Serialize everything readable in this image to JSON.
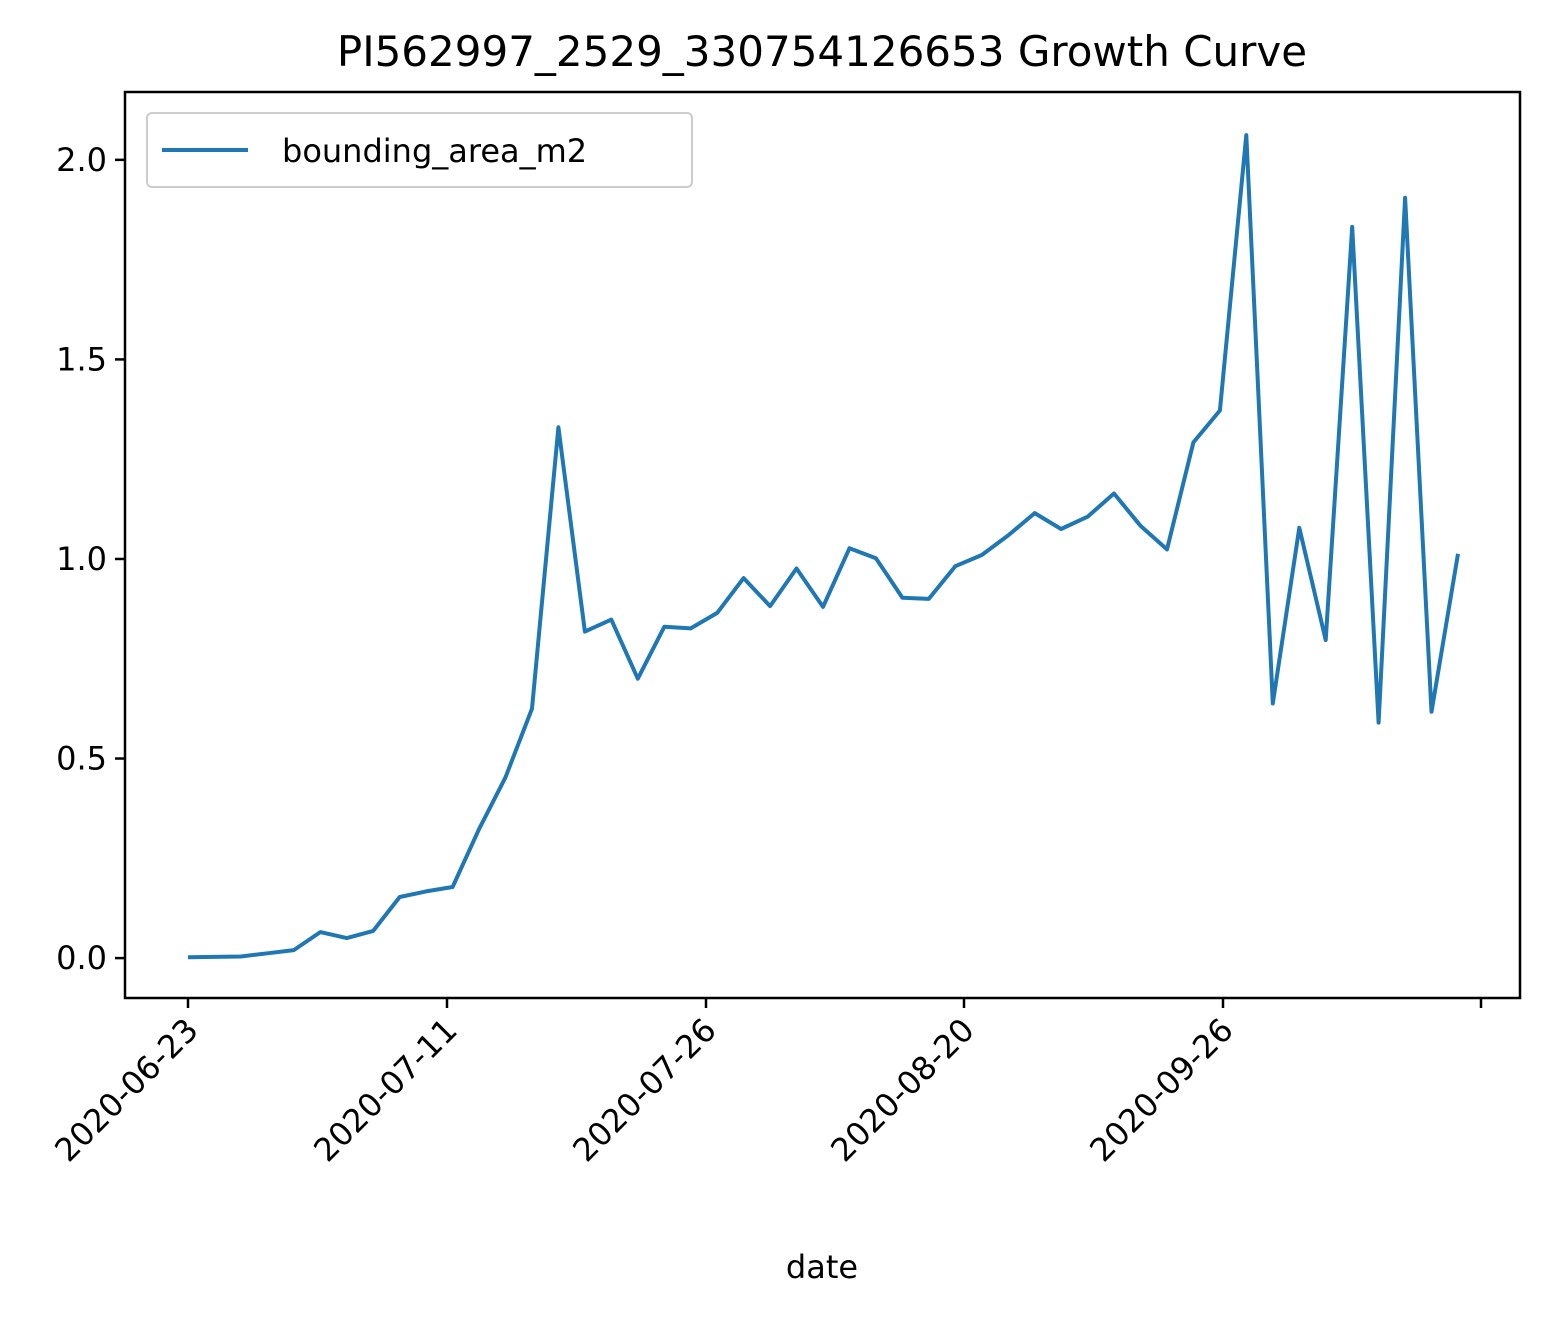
{
  "chart_data": {
    "type": "line",
    "title": "PI562997_2529_330754126653 Growth Curve",
    "xlabel": "date",
    "ylabel": "",
    "x_tick_labels": [
      "2020-06-23",
      "2020-07-11",
      "2020-07-26",
      "2020-08-20",
      "2020-09-26"
    ],
    "y_ticks": [
      0.0,
      0.5,
      1.0,
      1.5,
      2.0
    ],
    "y_tick_labels": [
      "0.0",
      "0.5",
      "1.0",
      "1.5",
      "2.0"
    ],
    "ylim": [
      -0.1,
      2.17
    ],
    "legend": {
      "position": "upper-left"
    },
    "grid": false,
    "series": [
      {
        "name": "bounding_area_m2",
        "color": "#1f77b4",
        "values": [
          0.002,
          0.003,
          0.004,
          0.012,
          0.02,
          0.065,
          0.05,
          0.068,
          0.153,
          0.167,
          0.178,
          0.323,
          0.453,
          0.625,
          1.33,
          0.818,
          0.848,
          0.7,
          0.83,
          0.826,
          0.865,
          0.952,
          0.882,
          0.976,
          0.88,
          1.027,
          1.002,
          0.903,
          0.9,
          0.982,
          1.01,
          1.059,
          1.115,
          1.075,
          1.106,
          1.164,
          1.083,
          1.024,
          1.292,
          1.372,
          2.062,
          0.638,
          1.078,
          0.797,
          1.832,
          0.59,
          1.905,
          0.617,
          1.013
        ]
      }
    ]
  }
}
